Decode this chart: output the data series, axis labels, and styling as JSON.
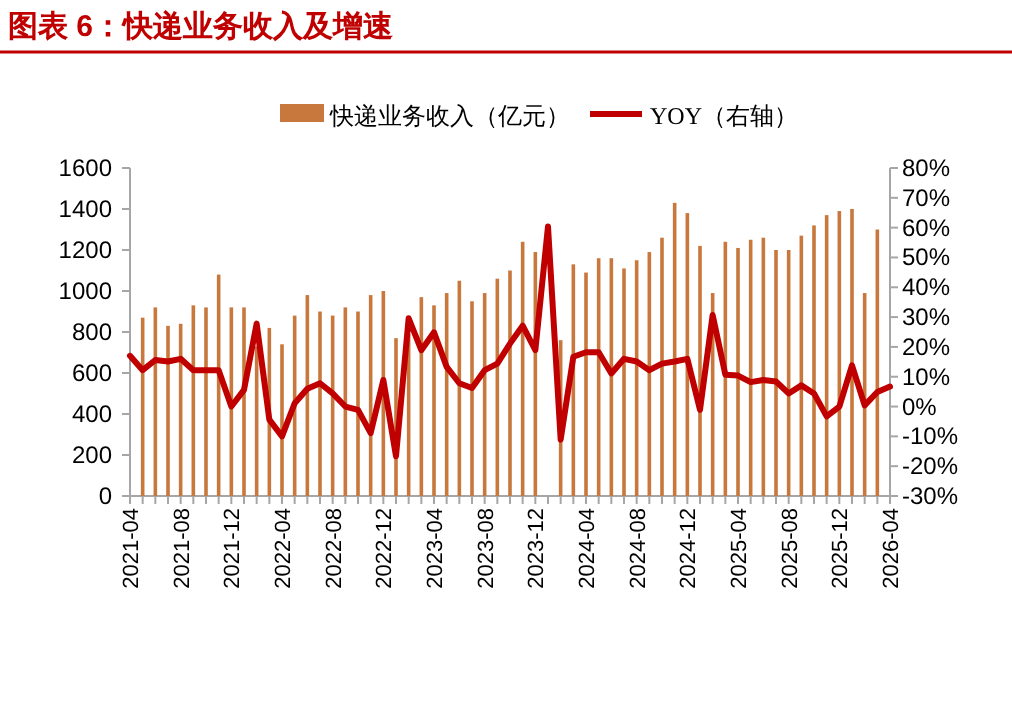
{
  "chart_data": {
    "type": "bar",
    "title": "图表 6：快递业务收入及增速",
    "categories": [
      "2021-04",
      null,
      null,
      null,
      "2021-08",
      null,
      null,
      null,
      "2021-12",
      null,
      null,
      null,
      "2022-04",
      null,
      null,
      null,
      "2022-08",
      null,
      null,
      null,
      "2022-12",
      null,
      null,
      null,
      "2023-04",
      null,
      null,
      null,
      "2023-08",
      null,
      null,
      null,
      "2023-12",
      null,
      null,
      null,
      "2024-04",
      null,
      null,
      null,
      "2024-08",
      null,
      null,
      null,
      "2024-12",
      null,
      null,
      null,
      "2025-04",
      null,
      null,
      null,
      "2025-08",
      null,
      null,
      null,
      "2025-12",
      null,
      null,
      null,
      "2026-04"
    ],
    "series": [
      {
        "name": "快递业务收入（亿元）",
        "color": "#c8783c",
        "values": [
          null,
          870,
          920,
          830,
          840,
          930,
          920,
          1080,
          920,
          920,
          730,
          820,
          740,
          880,
          980,
          900,
          880,
          920,
          900,
          980,
          1000,
          770,
          790,
          970,
          930,
          990,
          1050,
          950,
          990,
          1060,
          1100,
          1240,
          1190,
          null,
          760,
          1130,
          1090,
          1160,
          1160,
          1110,
          1150,
          1190,
          1260,
          1430,
          1380,
          1220,
          990,
          1240,
          1210,
          1250,
          1260,
          1200,
          1200,
          1270,
          1320,
          1370,
          1390,
          1400,
          990,
          1300,
          null
        ]
      },
      {
        "name": "YOY（右轴）",
        "type": "line",
        "axis": "y2",
        "color": "#c00000",
        "values": [
          17,
          12.2,
          15.6,
          15.1,
          16,
          12.2,
          12.2,
          12.2,
          0,
          5.6,
          27.8,
          -4.4,
          -10,
          1.1,
          6,
          7.8,
          4.4,
          0,
          -1.1,
          -8.9,
          8.9,
          -16.7,
          29.6,
          18.9,
          24.9,
          13.3,
          7.8,
          6.2,
          12.2,
          14.4,
          21.1,
          27.1,
          18.9,
          60.4,
          -11.1,
          16.7,
          18.2,
          18.2,
          11.1,
          16,
          15.1,
          12.2,
          14.4,
          15.1,
          16,
          -1.1,
          30.7,
          10.7,
          10.4,
          8.2,
          8.9,
          8.4,
          4.4,
          7.1,
          4.4,
          -3.3,
          0,
          13.8,
          0.4,
          4.9,
          6.7
        ]
      }
    ],
    "ylim": [
      0,
      1600
    ],
    "yticks": [
      0,
      200,
      400,
      600,
      800,
      1000,
      1200,
      1400,
      1600
    ],
    "y2lim": [
      -30,
      80
    ],
    "y2ticks": [
      {
        "value": -30,
        "label": "-30%"
      },
      {
        "value": -20,
        "label": "-20%"
      },
      {
        "value": -10,
        "label": "-10%"
      },
      {
        "value": 0,
        "label": "0%"
      },
      {
        "value": 10,
        "label": "10%"
      },
      {
        "value": 20,
        "label": "20%"
      },
      {
        "value": 30,
        "label": "30%"
      },
      {
        "value": 40,
        "label": "40%"
      },
      {
        "value": 50,
        "label": "50%"
      },
      {
        "value": 60,
        "label": "60%"
      },
      {
        "value": 70,
        "label": "70%"
      },
      {
        "value": 80,
        "label": "80%"
      }
    ],
    "legend": "top",
    "grid": false
  }
}
